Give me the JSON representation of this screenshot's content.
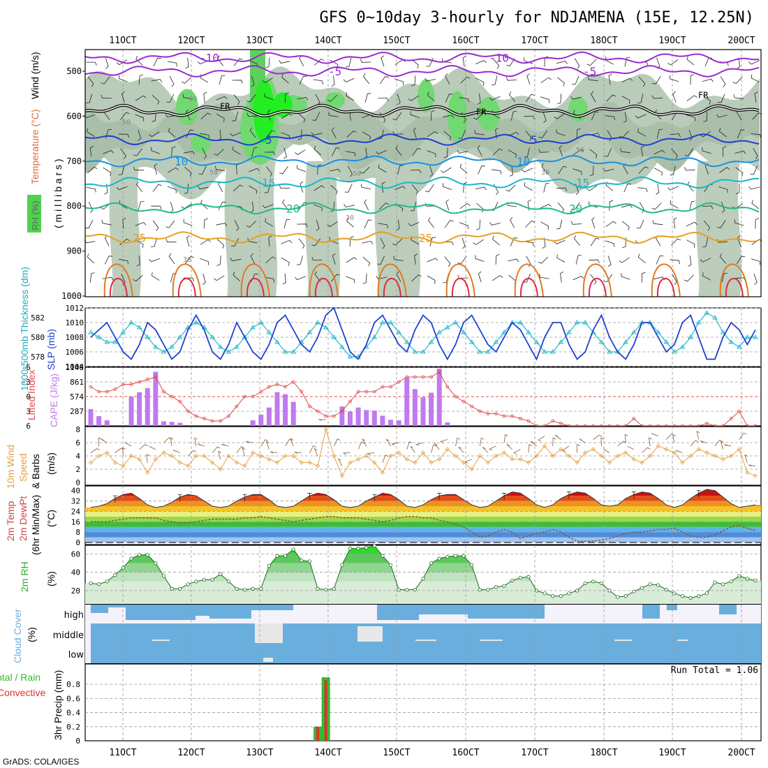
{
  "title": "GFS 0~10day 3-hourly for NDJAMENA (15E, 12.25N)",
  "footer": "GrADS: COLA/IGES",
  "date_ticks": [
    "11OCT",
    "12OCT",
    "13OCT",
    "14OCT",
    "15OCT",
    "16OCT",
    "17OCT",
    "18OCT",
    "19OCT",
    "20OCT"
  ],
  "colors": {
    "frame": "#000000",
    "grid": "#9a9a9a",
    "blue_line": "#1f3fcf",
    "cyan_line": "#22b8c8",
    "li_line": "#e04848",
    "cape_bar": "#c07af0",
    "wind_line": "#e8a040",
    "cloud": "#6aaede",
    "rain": "#e03030",
    "total": "#33bb33",
    "rh_dark": "#b9cbb9",
    "rh_green": "#4ed24e"
  },
  "chart_data": [
    {
      "type": "contour",
      "panel": "upper_air",
      "ylabel_parts": [
        "RH (%)",
        "Temperature (°C)",
        "Wind (m/s)"
      ],
      "yunit": "( m i l l i b a r s )",
      "y_ticks": [
        "500",
        "600",
        "700",
        "800",
        "900",
        "1000"
      ],
      "temperature_contours": [
        {
          "label": "-10",
          "pressure": 470,
          "color": "#9a2ad0"
        },
        {
          "label": "-5",
          "pressure": 500,
          "color": "#9a2ad0"
        },
        {
          "label": "FR",
          "pressure": 588,
          "color": "#000000"
        },
        {
          "label": "5",
          "pressure": 652,
          "color": "#1f3fcf"
        },
        {
          "label": "10",
          "pressure": 700,
          "color": "#1a90e0"
        },
        {
          "label": "15",
          "pressure": 748,
          "color": "#17b8c8"
        },
        {
          "label": "20",
          "pressure": 805,
          "color": "#1fba8a"
        },
        {
          "label": "25",
          "pressure": 870,
          "color": "#e6a020"
        }
      ],
      "rh_labels": [
        "50",
        "50",
        "50",
        "50",
        "30",
        "30",
        "30",
        "50"
      ]
    },
    {
      "type": "line",
      "panel": "slp_thickness",
      "ylabel_left": "1000-500mb Thickness (dm)",
      "ylabel_right": "SLP (mb)",
      "left_ticks": [
        "582",
        "580",
        "578"
      ],
      "right_ticks": [
        "1012",
        "1010",
        "1008",
        "1006",
        "1004"
      ],
      "series": [
        {
          "name": "SLP",
          "values": [
            1008,
            1009,
            1010,
            1008,
            1006,
            1005,
            1007,
            1010,
            1009,
            1007,
            1005,
            1006,
            1009,
            1011,
            1009,
            1006,
            1005,
            1007,
            1010,
            1008,
            1006,
            1005,
            1007,
            1010,
            1011,
            1009,
            1007,
            1006,
            1008,
            1011,
            1012,
            1009,
            1006,
            1005,
            1007,
            1010,
            1011,
            1009,
            1007,
            1006,
            1009,
            1011,
            1010,
            1007,
            1005,
            1007,
            1010,
            1011,
            1009,
            1007,
            1006,
            1008,
            1010,
            1009,
            1007,
            1005,
            1008,
            1010,
            1010,
            1007,
            1005,
            1006,
            1009,
            1011,
            1008,
            1006,
            1005,
            1007,
            1010,
            1010,
            1008,
            1006,
            1007,
            1010,
            1011,
            1008,
            1005,
            1005,
            1008,
            1010,
            1009,
            1007,
            1009
          ]
        },
        {
          "name": "Thickness",
          "values": [
            580.5,
            580,
            579.5,
            579.5,
            580.5,
            581.5,
            581,
            580,
            579,
            578.5,
            579,
            580,
            581,
            581.5,
            581,
            580,
            579,
            578.5,
            579,
            580,
            581,
            581.5,
            580.5,
            579.5,
            578.5,
            578.5,
            579.5,
            580.5,
            581.5,
            581,
            580,
            579,
            578,
            578,
            579,
            580,
            581.5,
            581.5,
            580.5,
            579.5,
            578.5,
            578.5,
            579.5,
            580.5,
            581,
            581.5,
            580.5,
            579.5,
            578.5,
            578.5,
            579.5,
            580.5,
            581.5,
            581.5,
            580.5,
            579.5,
            578.5,
            578.5,
            579.5,
            580.5,
            581.5,
            581.5,
            580.5,
            579.5,
            578.5,
            578.5,
            579.5,
            580.5,
            581.5,
            581.5,
            580.5,
            579.5,
            578.5,
            579,
            580,
            581.5,
            582.5,
            582,
            580.5,
            579.5,
            579,
            580,
            580
          ]
        }
      ]
    },
    {
      "type": "bar+line",
      "panel": "cape_li",
      "ylabel_left": "Lifted Index",
      "ylabel_right": "CAPE (J/kg)",
      "left_ticks": [
        "-6",
        "-3",
        "0",
        "3",
        "6"
      ],
      "right_ticks": [
        "1148",
        "861",
        "574",
        "287"
      ],
      "cape": [
        330,
        190,
        110,
        0,
        0,
        570,
        660,
        740,
        1060,
        90,
        80,
        60,
        0,
        0,
        0,
        0,
        0,
        0,
        0,
        0,
        110,
        220,
        360,
        660,
        620,
        470,
        0,
        0,
        0,
        0,
        0,
        380,
        280,
        360,
        310,
        300,
        200,
        120,
        110,
        940,
        720,
        560,
        650,
        1120,
        70,
        0,
        0,
        0,
        0,
        0,
        0,
        0,
        0,
        0,
        0,
        0,
        0,
        0,
        0,
        0,
        0,
        0,
        0,
        0,
        0,
        0,
        0,
        0,
        0,
        0,
        0,
        0,
        0,
        0,
        0,
        0,
        0,
        0,
        0,
        0,
        0,
        0,
        0
      ],
      "lifted_index": [
        -2,
        -1,
        -1,
        -1.5,
        -2.5,
        -2.5,
        -3,
        -3.5,
        -4,
        -1,
        0,
        1,
        3,
        4,
        4.5,
        5,
        5,
        4,
        2,
        0,
        0,
        -1,
        -2,
        -2.5,
        -2,
        -3,
        -1,
        2,
        3,
        4,
        4,
        3,
        1,
        -1,
        -1,
        -1,
        -2,
        -2,
        -3,
        -4,
        -4,
        -4,
        -4,
        -5,
        -2,
        0,
        1,
        2,
        3,
        3.5,
        3.5,
        4,
        4,
        4.5,
        5,
        6,
        6,
        5,
        5.5,
        6,
        6,
        6,
        6,
        6,
        6,
        6,
        6,
        4.5,
        6,
        6,
        6,
        6,
        6,
        6,
        6,
        6,
        5.5,
        6,
        6,
        4.5,
        3,
        6,
        6
      ]
    },
    {
      "type": "line",
      "panel": "wind10m",
      "ylabel": "10m Wind Speed & Barbs (m/s)",
      "y_ticks": [
        "0",
        "2",
        "4",
        "6",
        "8"
      ],
      "values": [
        3,
        4,
        4.5,
        3,
        2.5,
        4,
        3.5,
        1.5,
        3.5,
        4.5,
        4,
        3,
        2.5,
        4,
        4,
        3,
        2,
        4,
        3,
        2.5,
        4.5,
        4,
        3.5,
        3,
        4,
        4,
        3,
        3,
        2.5,
        8,
        4,
        1,
        3,
        3.5,
        4,
        3,
        1.5,
        4,
        4.5,
        3.5,
        3,
        4.5,
        3,
        3.5,
        5,
        4,
        3,
        2,
        4,
        3,
        4,
        4.5,
        3.5,
        3.5,
        3,
        4,
        5.5,
        4,
        5,
        4,
        3,
        4.5,
        5,
        4,
        3,
        4,
        4.5,
        3.5,
        3,
        4,
        5.5,
        5,
        4.5,
        3,
        4,
        5,
        4.5,
        4,
        3.5,
        4,
        5,
        1.5,
        1
      ]
    },
    {
      "type": "area",
      "panel": "temp_dewpt",
      "ylabel": "2m Temp 2m DewPt (6hr Min/Max) (°C)",
      "y_ticks": [
        "0",
        "8",
        "16",
        "24",
        "32",
        "40"
      ],
      "temperature": [
        27,
        28,
        30,
        34,
        37,
        38,
        34,
        29,
        27,
        28,
        31,
        35,
        37,
        36,
        32,
        28,
        27,
        28,
        32,
        35,
        37,
        37,
        33,
        28,
        27,
        28,
        32,
        36,
        38,
        37,
        33,
        28,
        27,
        28,
        32,
        35,
        38,
        37,
        33,
        28,
        27,
        29,
        33,
        36,
        37,
        37,
        33,
        29,
        27,
        28,
        32,
        36,
        39,
        38,
        34,
        29,
        27,
        29,
        34,
        37,
        39,
        38,
        34,
        29,
        28,
        29,
        34,
        37,
        39,
        38,
        34,
        29,
        27,
        29,
        34,
        38,
        41,
        40,
        35,
        30,
        27,
        28,
        29
      ],
      "dewpoint": [
        16,
        16,
        16,
        17,
        18,
        19,
        19,
        19,
        19,
        17,
        16,
        15,
        15,
        16,
        17,
        18,
        18,
        18,
        18,
        19,
        19,
        20,
        19,
        18,
        17,
        16,
        17,
        18,
        19,
        20,
        20,
        19,
        19,
        19,
        18,
        17,
        16,
        17,
        19,
        20,
        20,
        19,
        19,
        17,
        16,
        14,
        12,
        8,
        4,
        5,
        8,
        10,
        8,
        3,
        5,
        7,
        8,
        10,
        8,
        4,
        1,
        1,
        1,
        2,
        3,
        5,
        7,
        8,
        8,
        9,
        10,
        10,
        11,
        8,
        5,
        4,
        4,
        6,
        9,
        12,
        13,
        11,
        9
      ]
    },
    {
      "type": "area",
      "panel": "rh2m",
      "ylabel": "2m RH (%)",
      "y_ticks": [
        "20",
        "40",
        "60"
      ],
      "values": [
        28,
        27,
        30,
        37,
        45,
        55,
        59,
        59,
        50,
        36,
        22,
        22,
        27,
        30,
        32,
        32,
        38,
        30,
        22,
        21,
        22,
        22,
        47,
        58,
        58,
        65,
        53,
        52,
        22,
        21,
        22,
        48,
        66,
        66,
        67,
        69,
        58,
        48,
        21,
        21,
        21,
        33,
        50,
        55,
        57,
        58,
        58,
        48,
        21,
        21,
        24,
        25,
        31,
        34,
        35,
        20,
        17,
        14,
        14,
        17,
        20,
        28,
        30,
        28,
        20,
        13,
        14,
        19,
        23,
        27,
        26,
        21,
        17,
        14,
        12,
        14,
        17,
        29,
        27,
        30,
        36,
        33,
        31
      ]
    },
    {
      "type": "area",
      "panel": "cloud",
      "ylabel": "Cloud Cover (%)",
      "layers": [
        "high",
        "middle",
        "low"
      ]
    },
    {
      "type": "bar",
      "panel": "precip",
      "ylabel_parts": [
        "Total / Rain",
        "Convective"
      ],
      "yunit": "3hr Precip (mm)",
      "y_ticks": [
        "0",
        "0.2",
        "0.4",
        "0.6",
        "0.8"
      ],
      "run_total": "Run Total = 1.06",
      "bars": [
        {
          "step": 28,
          "total": 0.2,
          "convective": 0.2
        },
        {
          "step": 29,
          "total": 0.9,
          "convective": 0.86
        }
      ]
    }
  ]
}
